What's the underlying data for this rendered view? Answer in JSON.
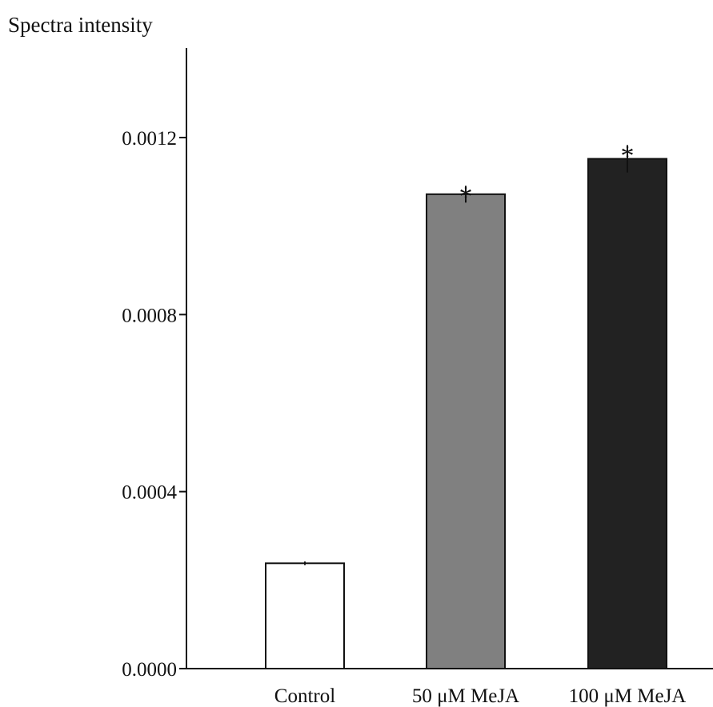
{
  "chart_data": {
    "type": "bar",
    "title": "",
    "xlabel": "",
    "ylabel": "Spectra intensity",
    "categories": [
      "Control",
      "50 μM MeJA",
      "100 μM MeJA"
    ],
    "values": [
      0.000238,
      0.001072,
      0.001152
    ],
    "errors": [
      4e-06,
      1.9e-05,
      3.1e-05
    ],
    "annotations": [
      "",
      "*",
      "*"
    ],
    "colors": [
      "#ffffff",
      "#808080",
      "#222222"
    ],
    "ylim": [
      0,
      0.0014
    ],
    "yticks": [
      0.0,
      0.0004,
      0.0008,
      0.0012
    ],
    "ytick_labels": [
      "0.0000",
      "0.0004",
      "0.0008",
      "0.0012"
    ],
    "grid": false,
    "legend": "none"
  }
}
